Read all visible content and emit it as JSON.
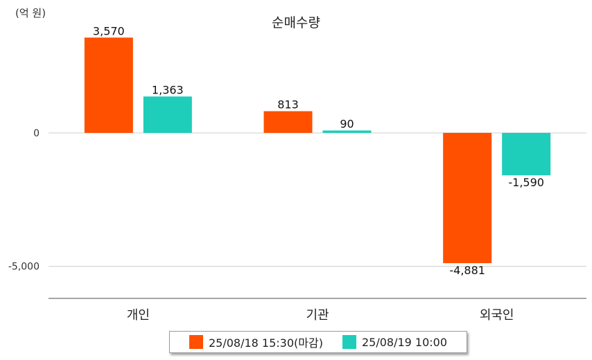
{
  "unit_label": "(억 원)",
  "chart_data": {
    "type": "bar",
    "title": "순매수량",
    "unit": "(억 원)",
    "categories": [
      "개인",
      "기관",
      "외국인"
    ],
    "series": [
      {
        "name": "25/08/18 15:30(마감)",
        "color": "#ff5000",
        "values": [
          3570,
          813,
          -4881
        ],
        "labels": [
          "3,570",
          "813",
          "-4,881"
        ]
      },
      {
        "name": "25/08/19 10:00",
        "color": "#1ecdba",
        "values": [
          1363,
          90,
          -1590
        ],
        "labels": [
          "1,363",
          "90",
          "-1,590"
        ]
      }
    ],
    "y_ticks": [
      0,
      -5000
    ],
    "y_tick_labels": [
      "0",
      "-5,000"
    ],
    "ylim": [
      -6200,
      4200
    ],
    "grid": true,
    "legend_position": "bottom"
  }
}
